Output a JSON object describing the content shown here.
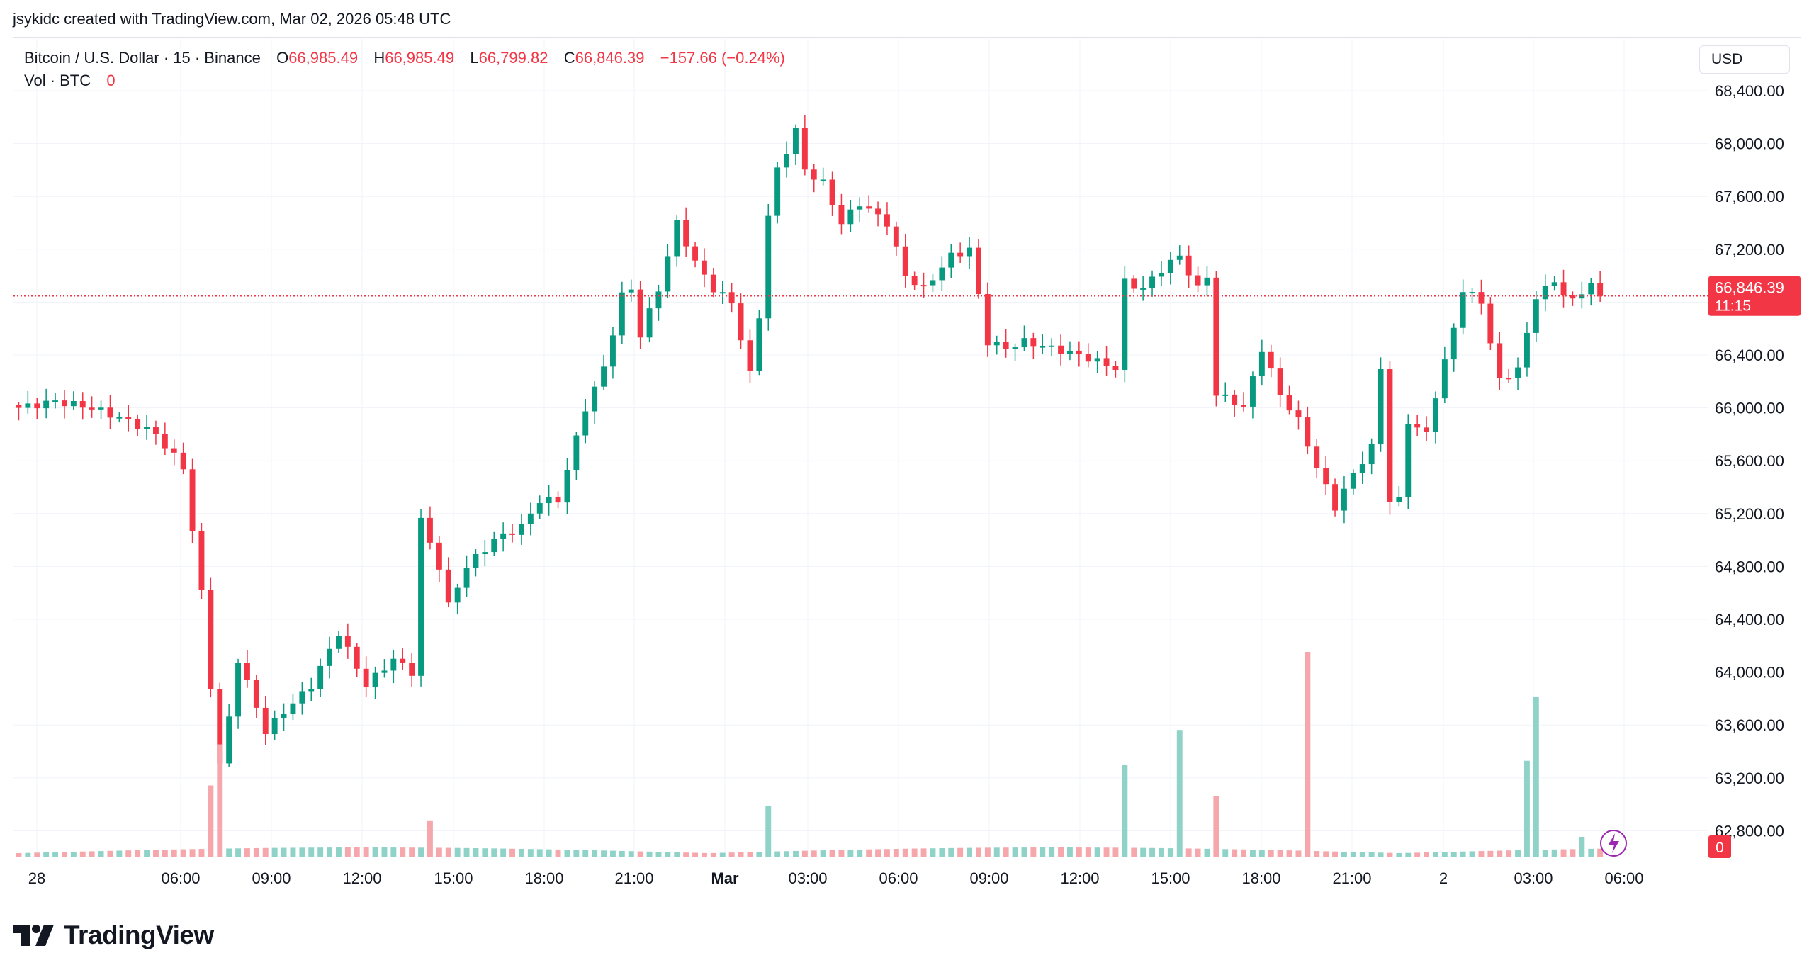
{
  "header": {
    "caption": "jsykidc created with TradingView.com, Mar 02, 2026 05:48 UTC"
  },
  "legend": {
    "symbol": "Bitcoin / U.S. Dollar · 15 · Binance",
    "open_label": "O",
    "open": "66,985.49",
    "high_label": "H",
    "high": "66,985.49",
    "low_label": "L",
    "low": "66,799.82",
    "close_label": "C",
    "close": "66,846.39",
    "change": "−157.66 (−0.24%)",
    "vol_label": "Vol · BTC",
    "vol_value": "0"
  },
  "currency": "USD",
  "price_tag": {
    "price": "66,846.39",
    "countdown": "11:15"
  },
  "volume_tag": "0",
  "footer": {
    "brand": "TradingView"
  },
  "colors": {
    "up": "#089981",
    "down": "#f23645",
    "vol_up": "#8fd3c8",
    "vol_down": "#f5a7ab",
    "grid": "#f0f3fa",
    "axis_text": "#131722",
    "last_price": "#f23645"
  },
  "chart_data": {
    "type": "candlestick",
    "symbol": "Bitcoin / U.S. Dollar",
    "interval": "15",
    "exchange": "Binance",
    "ylim": [
      62600,
      68700
    ],
    "y_ticks": [
      "68,400.00",
      "68,000.00",
      "67,600.00",
      "67,200.00",
      "66,800.00",
      "66,400.00",
      "66,000.00",
      "65,600.00",
      "65,200.00",
      "64,800.00",
      "64,400.00",
      "64,000.00",
      "63,600.00",
      "63,200.00",
      "62,800.00"
    ],
    "x_ticks": [
      "28",
      "06:00",
      "09:00",
      "12:00",
      "15:00",
      "18:00",
      "21:00",
      "Mar",
      "03:00",
      "06:00",
      "09:00",
      "12:00",
      "15:00",
      "18:00",
      "21:00",
      "2",
      "03:00",
      "06:00"
    ],
    "last_price": 66846.39,
    "keypoints": [
      {
        "bar": 0,
        "close": 66000
      },
      {
        "bar": 4,
        "close": 66050
      },
      {
        "bar": 8,
        "close": 66000
      },
      {
        "bar": 12,
        "close": 65900
      },
      {
        "bar": 15,
        "close": 65800
      },
      {
        "bar": 18,
        "close": 65550
      },
      {
        "bar": 20,
        "close": 64600
      },
      {
        "bar": 21,
        "close": 63900
      },
      {
        "bar": 22,
        "close": 63300
      },
      {
        "bar": 23,
        "close": 63650
      },
      {
        "bar": 24,
        "close": 64100
      },
      {
        "bar": 27,
        "close": 63550
      },
      {
        "bar": 29,
        "close": 63700
      },
      {
        "bar": 32,
        "close": 63900
      },
      {
        "bar": 35,
        "close": 64300
      },
      {
        "bar": 38,
        "close": 63900
      },
      {
        "bar": 41,
        "close": 64100
      },
      {
        "bar": 43,
        "close": 64000
      },
      {
        "bar": 44,
        "close": 65150
      },
      {
        "bar": 46,
        "close": 64800
      },
      {
        "bar": 47,
        "close": 64500
      },
      {
        "bar": 49,
        "close": 64800
      },
      {
        "bar": 52,
        "close": 65000
      },
      {
        "bar": 55,
        "close": 65100
      },
      {
        "bar": 57,
        "close": 65300
      },
      {
        "bar": 59,
        "close": 65300
      },
      {
        "bar": 62,
        "close": 66000
      },
      {
        "bar": 64,
        "close": 66300
      },
      {
        "bar": 66,
        "close": 66850
      },
      {
        "bar": 67,
        "close": 66900
      },
      {
        "bar": 68,
        "close": 66550
      },
      {
        "bar": 70,
        "close": 66900
      },
      {
        "bar": 72,
        "close": 67400
      },
      {
        "bar": 74,
        "close": 67100
      },
      {
        "bar": 76,
        "close": 66900
      },
      {
        "bar": 78,
        "close": 66800
      },
      {
        "bar": 80,
        "close": 66250
      },
      {
        "bar": 81,
        "close": 66700
      },
      {
        "bar": 82,
        "close": 67450
      },
      {
        "bar": 83,
        "close": 67800
      },
      {
        "bar": 85,
        "close": 68100
      },
      {
        "bar": 86,
        "close": 67800
      },
      {
        "bar": 88,
        "close": 67700
      },
      {
        "bar": 90,
        "close": 67400
      },
      {
        "bar": 92,
        "close": 67550
      },
      {
        "bar": 95,
        "close": 67400
      },
      {
        "bar": 97,
        "close": 67000
      },
      {
        "bar": 99,
        "close": 66900
      },
      {
        "bar": 102,
        "close": 67150
      },
      {
        "bar": 104,
        "close": 67200
      },
      {
        "bar": 106,
        "close": 66500
      },
      {
        "bar": 108,
        "close": 66450
      },
      {
        "bar": 110,
        "close": 66500
      },
      {
        "bar": 113,
        "close": 66450
      },
      {
        "bar": 116,
        "close": 66400
      },
      {
        "bar": 118,
        "close": 66350
      },
      {
        "bar": 120,
        "close": 66300
      },
      {
        "bar": 121,
        "close": 66950
      },
      {
        "bar": 123,
        "close": 66900
      },
      {
        "bar": 125,
        "close": 67050
      },
      {
        "bar": 127,
        "close": 67150
      },
      {
        "bar": 129,
        "close": 66900
      },
      {
        "bar": 130,
        "close": 67000
      },
      {
        "bar": 131,
        "close": 66100
      },
      {
        "bar": 133,
        "close": 66050
      },
      {
        "bar": 134,
        "close": 66000
      },
      {
        "bar": 136,
        "close": 66450
      },
      {
        "bar": 138,
        "close": 66100
      },
      {
        "bar": 140,
        "close": 65900
      },
      {
        "bar": 142,
        "close": 65550
      },
      {
        "bar": 144,
        "close": 65250
      },
      {
        "bar": 146,
        "close": 65500
      },
      {
        "bar": 148,
        "close": 65700
      },
      {
        "bar": 149,
        "close": 66300
      },
      {
        "bar": 150,
        "close": 65300
      },
      {
        "bar": 151,
        "close": 65300
      },
      {
        "bar": 152,
        "close": 65900
      },
      {
        "bar": 154,
        "close": 65800
      },
      {
        "bar": 155,
        "close": 66100
      },
      {
        "bar": 157,
        "close": 66600
      },
      {
        "bar": 158,
        "close": 66900
      },
      {
        "bar": 160,
        "close": 66800
      },
      {
        "bar": 161,
        "close": 66500
      },
      {
        "bar": 162,
        "close": 66200
      },
      {
        "bar": 164,
        "close": 66300
      },
      {
        "bar": 165,
        "close": 66550
      },
      {
        "bar": 166,
        "close": 66850
      },
      {
        "bar": 168,
        "close": 66950
      },
      {
        "bar": 170,
        "close": 66800
      },
      {
        "bar": 172,
        "close": 66950
      },
      {
        "bar": 173,
        "close": 66846.39
      }
    ],
    "volume_spikes": [
      {
        "bar": 21,
        "volume": 0.35
      },
      {
        "bar": 22,
        "volume": 0.55
      },
      {
        "bar": 45,
        "volume": 0.18
      },
      {
        "bar": 82,
        "volume": 0.25
      },
      {
        "bar": 121,
        "volume": 0.45
      },
      {
        "bar": 127,
        "volume": 0.62
      },
      {
        "bar": 131,
        "volume": 0.3
      },
      {
        "bar": 141,
        "volume": 1.0
      },
      {
        "bar": 165,
        "volume": 0.47
      },
      {
        "bar": 166,
        "volume": 0.78
      },
      {
        "bar": 171,
        "volume": 0.1
      }
    ]
  }
}
